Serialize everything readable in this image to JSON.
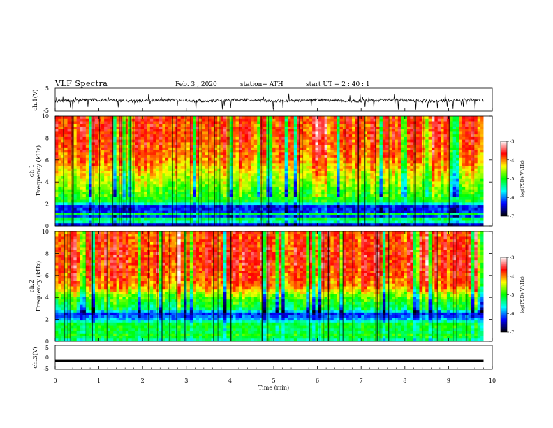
{
  "header": {
    "title": "VLF  Spectra",
    "date": "Feb. 3  , 2020",
    "station": "station= ATH",
    "start": "start  UT  =   2  : 40 : 1"
  },
  "colors": {
    "trace": "#000000",
    "cb_stops": [
      "#000000",
      "#0000ff",
      "#00ffff",
      "#00ff00",
      "#ffff00",
      "#ff0000",
      "#ffffff"
    ]
  },
  "chart_data": [
    {
      "type": "line",
      "panel": "ch1-waveform",
      "ylabel": "ch.1(V)",
      "ylim": [
        -5,
        5
      ],
      "yticks": [
        "5",
        "-5"
      ],
      "description_values": "noisy waveform centred near 0 V, amplitude roughly -1.5 to 0.8 V",
      "x_range_min": [
        0,
        9.8
      ]
    },
    {
      "type": "heatmap",
      "panel": "ch1-spectrogram",
      "ylabel_line1": "ch.1",
      "ylabel_line2": "Frequency  (kHz)",
      "ylim": [
        0,
        10
      ],
      "yticks": [
        "0",
        "2",
        "4",
        "6",
        "8",
        "10"
      ],
      "x_range_min": [
        0,
        9.8
      ],
      "freq_profile_log_psd": [
        [
          0.0,
          -7
        ],
        [
          0.3,
          -5.5
        ],
        [
          0.6,
          -5.2
        ],
        [
          0.8,
          -6.5
        ],
        [
          1.0,
          -4.5
        ],
        [
          1.2,
          -6.2
        ],
        [
          1.8,
          -6.3
        ],
        [
          2.2,
          -5.0
        ],
        [
          3.0,
          -4.9
        ],
        [
          4.0,
          -4.6
        ],
        [
          5.0,
          -4.3
        ],
        [
          6.0,
          -4.0
        ],
        [
          7.0,
          -3.9
        ],
        [
          8.0,
          -3.8
        ],
        [
          9.0,
          -3.8
        ],
        [
          10.0,
          -3.8
        ]
      ]
    },
    {
      "type": "heatmap",
      "panel": "ch2-spectrogram",
      "ylabel_line1": "ch.2",
      "ylabel_line2": "Frequency  (kHz)",
      "ylim": [
        0,
        10
      ],
      "yticks": [
        "0",
        "2",
        "4",
        "6",
        "8",
        "10"
      ],
      "x_range_min": [
        0,
        9.8
      ],
      "freq_profile_log_psd": [
        [
          0.0,
          -5.5
        ],
        [
          0.5,
          -4.9
        ],
        [
          0.9,
          -5.2
        ],
        [
          1.5,
          -5.0
        ],
        [
          2.1,
          -6.0
        ],
        [
          2.5,
          -6.2
        ],
        [
          3.0,
          -5.2
        ],
        [
          4.0,
          -4.8
        ],
        [
          5.0,
          -4.0
        ],
        [
          6.0,
          -3.8
        ],
        [
          7.0,
          -3.7
        ],
        [
          8.0,
          -3.7
        ],
        [
          9.0,
          -3.8
        ],
        [
          10.0,
          -3.8
        ]
      ]
    },
    {
      "type": "line",
      "panel": "ch3-waveform",
      "ylabel": "ch.3(V)",
      "ylim": [
        -5,
        5
      ],
      "yticks": [
        "5",
        "0",
        "-5"
      ],
      "constant_value_v": -1.5,
      "x_range_min": [
        0,
        9.8
      ]
    }
  ],
  "xaxis": {
    "label": "Time  (min)",
    "ticks": [
      "0",
      "1",
      "2",
      "3",
      "4",
      "5",
      "6",
      "7",
      "8",
      "9",
      "10"
    ],
    "xlim": [
      0,
      10
    ]
  },
  "colorbar": {
    "label": "log(PSD)(V²/Hz)",
    "range": [
      -7,
      -3
    ],
    "ticks": [
      "-3",
      "-4",
      "-5",
      "-6",
      "-7"
    ]
  }
}
